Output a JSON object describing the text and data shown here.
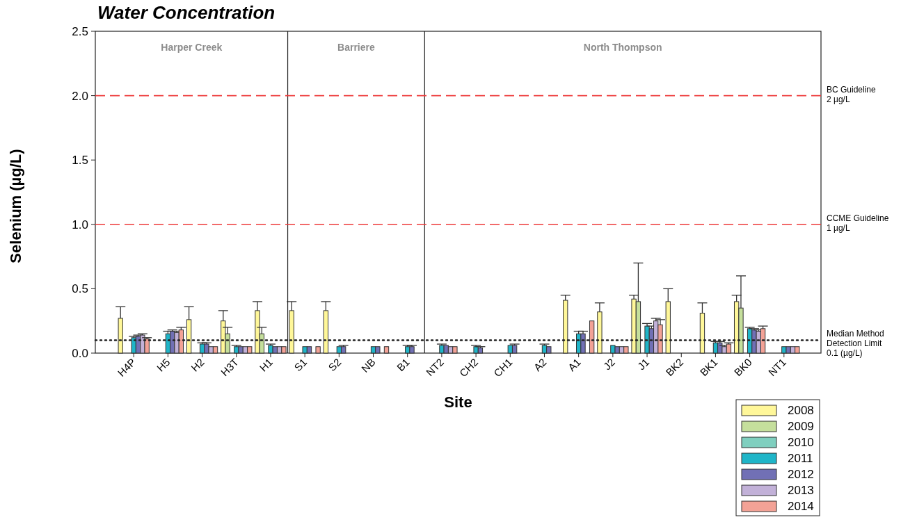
{
  "chart_data": {
    "type": "bar",
    "title": "Water Concentration",
    "xlabel": "Site",
    "ylabel": "Selenium (µg/L)",
    "categories": [
      "H4P",
      "H5",
      "H2",
      "H3T",
      "H1",
      "S1",
      "S2",
      "NB",
      "B1",
      "NT2",
      "CH2",
      "CH1",
      "A2",
      "A1",
      "J2",
      "J1",
      "BK2",
      "BK1",
      "BK0",
      "NT1"
    ],
    "series": [
      {
        "name": "2008",
        "color": "#fff799",
        "values": [
          0.27,
          null,
          0.26,
          0.25,
          0.33,
          0.33,
          0.33,
          null,
          null,
          null,
          null,
          null,
          null,
          0.41,
          0.32,
          0.42,
          0.4,
          0.31,
          0.4,
          null
        ],
        "errors": [
          0.09,
          null,
          0.1,
          0.08,
          0.07,
          0.07,
          0.07,
          null,
          null,
          null,
          null,
          null,
          null,
          0.04,
          0.07,
          0.03,
          0.1,
          0.08,
          0.05,
          null
        ]
      },
      {
        "name": "2009",
        "color": "#c5df9c",
        "values": [
          null,
          null,
          null,
          0.15,
          0.15,
          null,
          null,
          null,
          null,
          null,
          null,
          null,
          null,
          null,
          null,
          0.4,
          null,
          null,
          0.35,
          null
        ],
        "errors": [
          null,
          null,
          null,
          0.05,
          0.05,
          null,
          null,
          null,
          null,
          null,
          null,
          null,
          null,
          null,
          null,
          0.3,
          null,
          null,
          0.25,
          null
        ]
      },
      {
        "name": "2010",
        "color": "#7fcfbf",
        "values": [
          null,
          null,
          null,
          null,
          null,
          null,
          null,
          null,
          null,
          null,
          null,
          null,
          null,
          null,
          null,
          null,
          null,
          null,
          null,
          null
        ]
      },
      {
        "name": "2011",
        "color": "#1fb5c8",
        "values": [
          0.12,
          0.15,
          0.07,
          0.05,
          0.06,
          0.05,
          0.05,
          0.05,
          0.05,
          0.06,
          0.05,
          0.06,
          0.06,
          0.15,
          0.06,
          0.21,
          null,
          0.08,
          0.19,
          0.05
        ],
        "errors": [
          0.01,
          0.02,
          0.01,
          0.01,
          0.01,
          null,
          null,
          null,
          0.01,
          0.01,
          0.01,
          null,
          0.01,
          0.02,
          null,
          0.02,
          null,
          0.01,
          0.01,
          null
        ]
      },
      {
        "name": "2012",
        "color": "#7170b5",
        "values": [
          0.13,
          0.17,
          0.07,
          0.05,
          0.05,
          0.05,
          0.05,
          0.05,
          0.05,
          0.06,
          0.04,
          0.06,
          0.05,
          0.15,
          0.05,
          0.19,
          null,
          0.08,
          0.18,
          0.05
        ],
        "errors": [
          0.01,
          0.01,
          0.01,
          null,
          null,
          null,
          0.01,
          null,
          0.01,
          null,
          0.01,
          0.01,
          null,
          0.02,
          null,
          0.02,
          null,
          0.01,
          0.01,
          null
        ]
      },
      {
        "name": "2013",
        "color": "#c2b1d8",
        "values": [
          0.14,
          0.16,
          0.05,
          0.05,
          0.05,
          null,
          null,
          null,
          null,
          0.05,
          null,
          null,
          null,
          null,
          0.05,
          0.25,
          null,
          0.05,
          0.17,
          0.05
        ],
        "errors": [
          0.01,
          0.01,
          null,
          null,
          null,
          null,
          null,
          null,
          null,
          null,
          null,
          null,
          null,
          null,
          null,
          0.02,
          null,
          0.01,
          0.01,
          null
        ]
      },
      {
        "name": "2014",
        "color": "#f3a296",
        "values": [
          0.11,
          0.18,
          0.05,
          0.05,
          0.05,
          0.05,
          null,
          0.05,
          null,
          0.05,
          null,
          null,
          null,
          0.25,
          0.05,
          0.22,
          null,
          0.07,
          0.19,
          0.05
        ],
        "errors": [
          0.01,
          0.02,
          null,
          null,
          null,
          null,
          null,
          null,
          null,
          null,
          null,
          null,
          null,
          null,
          null,
          0.04,
          null,
          0.01,
          0.02,
          null
        ]
      }
    ],
    "ylim": [
      0,
      2.5
    ],
    "yticks": [
      {
        "value": 0,
        "label": "0.0"
      },
      {
        "value": 0.5,
        "label": "0.5"
      },
      {
        "value": 1,
        "label": "1.0"
      },
      {
        "value": 1.5,
        "label": "1.5"
      },
      {
        "value": 2,
        "label": "2.0"
      },
      {
        "value": 2.5,
        "label": "2.5"
      }
    ],
    "ref_lines": [
      {
        "axis": "y",
        "value": 2,
        "label": "BC Guideline\n2 µg/L",
        "color": "#ee3b3b",
        "line_style": "dashed"
      },
      {
        "axis": "y",
        "value": 1,
        "label": "CCME Guideline\n1 µg/L",
        "color": "#ee3b3b",
        "line_style": "dashed"
      },
      {
        "axis": "y",
        "value": 0.1,
        "label": "Median Method\nDetection Limit\n0.1 (µg/L)",
        "color": "#222222",
        "line_style": "dotted"
      }
    ],
    "annotations": [
      "Harper Creek",
      "Barriere",
      "North Thompson"
    ],
    "legend": "bottom right",
    "grid": false
  }
}
